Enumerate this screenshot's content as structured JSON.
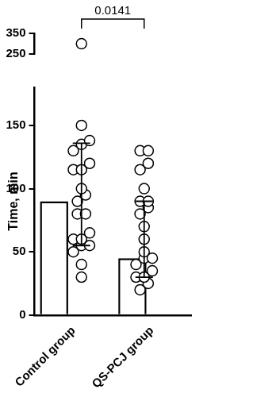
{
  "chart_data": {
    "type": "bar",
    "y_label": "Time, min",
    "categories": [
      "Control group",
      "QS-PCJ group"
    ],
    "values": [
      90,
      45
    ],
    "whisker_low": [
      55,
      30
    ],
    "whisker_high": [
      136,
      90
    ],
    "points": [
      [
        300,
        150,
        138,
        135,
        130,
        120,
        115,
        115,
        100,
        95,
        90,
        80,
        80,
        65,
        60,
        60,
        55,
        55,
        50,
        40,
        30
      ],
      [
        130,
        130,
        120,
        115,
        100,
        90,
        90,
        85,
        80,
        70,
        60,
        50,
        45,
        45,
        40,
        35,
        30,
        30,
        25,
        20
      ]
    ],
    "color": "#ffffff",
    "marker": "circle",
    "ylim": [
      [
        0,
        180
      ],
      [
        250,
        350
      ]
    ],
    "yticks": [
      [
        0,
        50,
        100,
        150
      ],
      [
        250,
        350
      ]
    ],
    "grid": false,
    "annotations": [
      {
        "text": "0.0141",
        "from": "Control group",
        "to": "QS-PCJ group"
      }
    ]
  }
}
